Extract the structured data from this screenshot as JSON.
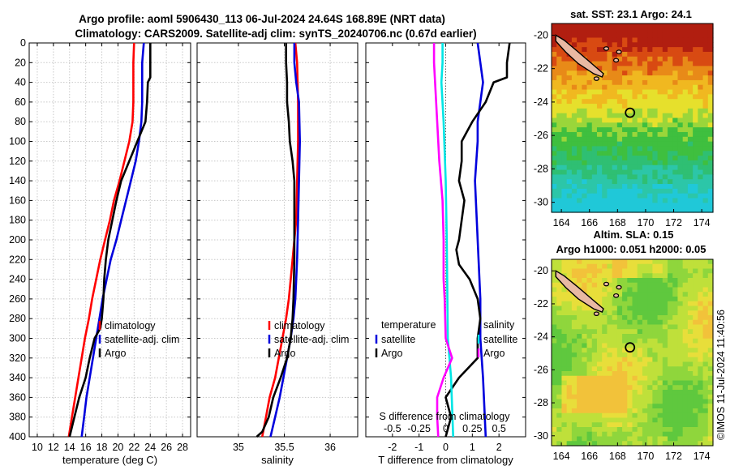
{
  "header": {
    "title_line1": "Argo profile: aoml 5906430_113 06-Jul-2024 24.64S 168.89E (NRT data)",
    "title_line2": "Climatology: CARS2009. Satellite-adj clim: synTS_20240706.nc (0.67d earlier)"
  },
  "side_label": "©IMOS 11-Jul-2024 11:40:56",
  "colors": {
    "red": "#ff0000",
    "blue": "#0000dd",
    "black": "#000000",
    "magenta": "#ff00ff",
    "cyan": "#00e5e5"
  },
  "chart_data": [
    {
      "id": "temperature",
      "type": "line",
      "xlabel": "temperature (deg C)",
      "ylabel": "",
      "xlim": [
        9,
        29
      ],
      "ylim": [
        400,
        0
      ],
      "xticks": [
        10,
        12,
        14,
        16,
        18,
        20,
        22,
        24,
        26,
        28
      ],
      "yticks": [
        0,
        20,
        40,
        60,
        80,
        100,
        120,
        140,
        160,
        180,
        200,
        220,
        240,
        260,
        280,
        300,
        320,
        340,
        360,
        380,
        400
      ],
      "grid": true,
      "legend": [
        "climatology",
        "satellite-adj. clim",
        "Argo"
      ],
      "series": [
        {
          "name": "climatology",
          "color": "red",
          "points": [
            [
              22.0,
              0
            ],
            [
              21.9,
              20
            ],
            [
              21.9,
              60
            ],
            [
              21.8,
              80
            ],
            [
              21.4,
              100
            ],
            [
              20.8,
              120
            ],
            [
              20.2,
              140
            ],
            [
              19.5,
              160
            ],
            [
              19.0,
              180
            ],
            [
              18.4,
              200
            ],
            [
              17.8,
              220
            ],
            [
              17.3,
              240
            ],
            [
              16.8,
              260
            ],
            [
              16.4,
              280
            ],
            [
              15.9,
              300
            ],
            [
              15.5,
              320
            ],
            [
              15.1,
              340
            ],
            [
              14.7,
              360
            ],
            [
              14.3,
              380
            ],
            [
              13.9,
              400
            ]
          ]
        },
        {
          "name": "satellite-adj. clim",
          "color": "blue",
          "points": [
            [
              23.2,
              0
            ],
            [
              23.0,
              20
            ],
            [
              23.0,
              60
            ],
            [
              22.9,
              80
            ],
            [
              22.6,
              100
            ],
            [
              22.2,
              120
            ],
            [
              21.6,
              140
            ],
            [
              21.0,
              160
            ],
            [
              20.4,
              180
            ],
            [
              19.8,
              200
            ],
            [
              19.1,
              220
            ],
            [
              18.6,
              240
            ],
            [
              18.1,
              260
            ],
            [
              17.7,
              280
            ],
            [
              17.3,
              300
            ],
            [
              16.9,
              320
            ],
            [
              16.5,
              340
            ],
            [
              16.1,
              360
            ],
            [
              15.8,
              380
            ],
            [
              15.5,
              400
            ]
          ]
        },
        {
          "name": "Argo",
          "color": "black",
          "points": [
            [
              24.0,
              0
            ],
            [
              24.0,
              20
            ],
            [
              24.0,
              35
            ],
            [
              23.7,
              40
            ],
            [
              23.6,
              60
            ],
            [
              23.4,
              80
            ],
            [
              22.4,
              100
            ],
            [
              21.4,
              120
            ],
            [
              20.4,
              140
            ],
            [
              19.8,
              160
            ],
            [
              19.3,
              180
            ],
            [
              18.8,
              200
            ],
            [
              18.5,
              220
            ],
            [
              18.3,
              240
            ],
            [
              18.2,
              260
            ],
            [
              18.0,
              280
            ],
            [
              17.8,
              290
            ],
            [
              17.1,
              300
            ],
            [
              16.5,
              320
            ],
            [
              16.0,
              340
            ],
            [
              15.2,
              360
            ],
            [
              14.6,
              380
            ],
            [
              14.0,
              400
            ]
          ]
        }
      ]
    },
    {
      "id": "salinity",
      "type": "line",
      "xlabel": "salinity",
      "ylabel": "",
      "xlim": [
        34.55,
        36.3
      ],
      "ylim": [
        400,
        0
      ],
      "xticks": [
        35,
        35.5,
        36
      ],
      "yticks": [
        0,
        20,
        40,
        60,
        80,
        100,
        120,
        140,
        160,
        180,
        200,
        220,
        240,
        260,
        280,
        300,
        320,
        340,
        360,
        380,
        400
      ],
      "grid": true,
      "legend": [
        "climatology",
        "satellite-adj. clim",
        "Argo"
      ],
      "series": [
        {
          "name": "climatology",
          "color": "red",
          "points": [
            [
              35.62,
              0
            ],
            [
              35.64,
              20
            ],
            [
              35.65,
              60
            ],
            [
              35.65,
              100
            ],
            [
              35.64,
              140
            ],
            [
              35.63,
              180
            ],
            [
              35.61,
              200
            ],
            [
              35.59,
              220
            ],
            [
              35.57,
              240
            ],
            [
              35.55,
              260
            ],
            [
              35.52,
              280
            ],
            [
              35.48,
              300
            ],
            [
              35.44,
              320
            ],
            [
              35.4,
              340
            ],
            [
              35.34,
              360
            ],
            [
              35.3,
              380
            ],
            [
              35.26,
              400
            ]
          ]
        },
        {
          "name": "satellite-adj. clim",
          "color": "blue",
          "points": [
            [
              35.61,
              0
            ],
            [
              35.61,
              20
            ],
            [
              35.63,
              40
            ],
            [
              35.66,
              60
            ],
            [
              35.67,
              100
            ],
            [
              35.66,
              140
            ],
            [
              35.65,
              180
            ],
            [
              35.64,
              220
            ],
            [
              35.62,
              260
            ],
            [
              35.6,
              280
            ],
            [
              35.57,
              300
            ],
            [
              35.53,
              320
            ],
            [
              35.49,
              340
            ],
            [
              35.45,
              360
            ],
            [
              35.4,
              380
            ],
            [
              35.35,
              400
            ]
          ]
        },
        {
          "name": "Argo",
          "color": "black",
          "points": [
            [
              35.52,
              0
            ],
            [
              35.52,
              20
            ],
            [
              35.53,
              40
            ],
            [
              35.53,
              60
            ],
            [
              35.55,
              80
            ],
            [
              35.56,
              100
            ],
            [
              35.59,
              120
            ],
            [
              35.61,
              140
            ],
            [
              35.61,
              180
            ],
            [
              35.61,
              220
            ],
            [
              35.6,
              260
            ],
            [
              35.59,
              280
            ],
            [
              35.57,
              300
            ],
            [
              35.53,
              320
            ],
            [
              35.46,
              340
            ],
            [
              35.38,
              360
            ],
            [
              35.33,
              380
            ],
            [
              35.26,
              395
            ],
            [
              35.2,
              400
            ]
          ]
        }
      ]
    },
    {
      "id": "difference",
      "type": "line",
      "xlabel": "T difference from climatology",
      "ylabel": "",
      "xlim": [
        -3,
        3
      ],
      "ylim": [
        400,
        0
      ],
      "xticks": [
        -2,
        -1,
        0,
        1,
        2
      ],
      "yticks": [
        0,
        20,
        40,
        60,
        80,
        100,
        120,
        140,
        160,
        180,
        200,
        220,
        240,
        260,
        280,
        300,
        320,
        340,
        360,
        380,
        400
      ],
      "grid": false,
      "top_axis_label": "S difference from climatology",
      "top_ticks": [
        "-0.5",
        "-0.25",
        "0",
        "0.25",
        "0.5"
      ],
      "legend_temperature_title": "temperature",
      "legend_salinity_title": "salinity",
      "legend_temperature": [
        "satellite",
        "Argo"
      ],
      "legend_salinity": [
        "satellite",
        "Argo"
      ],
      "series": [
        {
          "name": "T satellite",
          "color": "blue",
          "points": [
            [
              1.2,
              0
            ],
            [
              1.3,
              20
            ],
            [
              1.4,
              40
            ],
            [
              1.3,
              60
            ],
            [
              1.2,
              80
            ],
            [
              1.2,
              100
            ],
            [
              1.1,
              140
            ],
            [
              1.2,
              200
            ],
            [
              1.3,
              260
            ],
            [
              1.3,
              300
            ],
            [
              1.4,
              340
            ],
            [
              1.5,
              400
            ]
          ]
        },
        {
          "name": "T Argo",
          "color": "black",
          "points": [
            [
              2.4,
              0
            ],
            [
              2.3,
              20
            ],
            [
              2.3,
              35
            ],
            [
              1.8,
              40
            ],
            [
              1.5,
              60
            ],
            [
              1.0,
              80
            ],
            [
              0.6,
              100
            ],
            [
              0.6,
              120
            ],
            [
              0.5,
              140
            ],
            [
              0.7,
              160
            ],
            [
              0.5,
              200
            ],
            [
              0.4,
              210
            ],
            [
              0.5,
              225
            ],
            [
              0.9,
              240
            ],
            [
              1.2,
              260
            ],
            [
              1.3,
              280
            ],
            [
              1.2,
              300
            ],
            [
              1.2,
              320
            ],
            [
              0.5,
              340
            ],
            [
              0.0,
              360
            ],
            [
              0.2,
              380
            ],
            [
              0.0,
              400
            ]
          ]
        },
        {
          "name": "S satellite",
          "color": "cyan",
          "points": [
            [
              -0.03,
              0
            ],
            [
              -0.03,
              20
            ],
            [
              -0.04,
              40
            ],
            [
              -0.02,
              80
            ],
            [
              0.0,
              140
            ],
            [
              0.01,
              200
            ],
            [
              0.02,
              300
            ],
            [
              0.05,
              340
            ],
            [
              0.07,
              400
            ]
          ]
        },
        {
          "name": "S Argo",
          "color": "magenta",
          "points": [
            [
              -0.11,
              0
            ],
            [
              -0.11,
              20
            ],
            [
              -0.1,
              40
            ],
            [
              -0.08,
              80
            ],
            [
              -0.06,
              120
            ],
            [
              -0.03,
              160
            ],
            [
              -0.02,
              200
            ],
            [
              -0.02,
              240
            ],
            [
              -0.01,
              260
            ],
            [
              0.0,
              300
            ],
            [
              0.06,
              320
            ],
            [
              -0.02,
              340
            ],
            [
              -0.08,
              360
            ],
            [
              -0.08,
              380
            ],
            [
              -0.07,
              400
            ]
          ]
        }
      ]
    }
  ],
  "maps": [
    {
      "id": "sst-map",
      "title": "sat. SST: 23.1 Argo: 24.1",
      "xticks": [
        164,
        166,
        168,
        170,
        172,
        174
      ],
      "yticks": [
        -20,
        -22,
        -24,
        -26,
        -28,
        -30
      ],
      "xlim": [
        163.3,
        174.8
      ],
      "ylim": [
        -30.6,
        -19.3
      ],
      "marker": {
        "lon": 168.89,
        "lat": -24.64
      }
    },
    {
      "id": "sla-map",
      "title_line1": "Altim. SLA: 0.15",
      "title_line2": "Argo h1000: 0.051 h2000: 0.05",
      "xticks": [
        164,
        166,
        168,
        170,
        172,
        174
      ],
      "yticks": [
        -20,
        -22,
        -24,
        -26,
        -28,
        -30
      ],
      "xlim": [
        163.3,
        174.8
      ],
      "ylim": [
        -30.6,
        -19.3
      ],
      "marker": {
        "lon": 168.89,
        "lat": -24.64
      }
    }
  ]
}
